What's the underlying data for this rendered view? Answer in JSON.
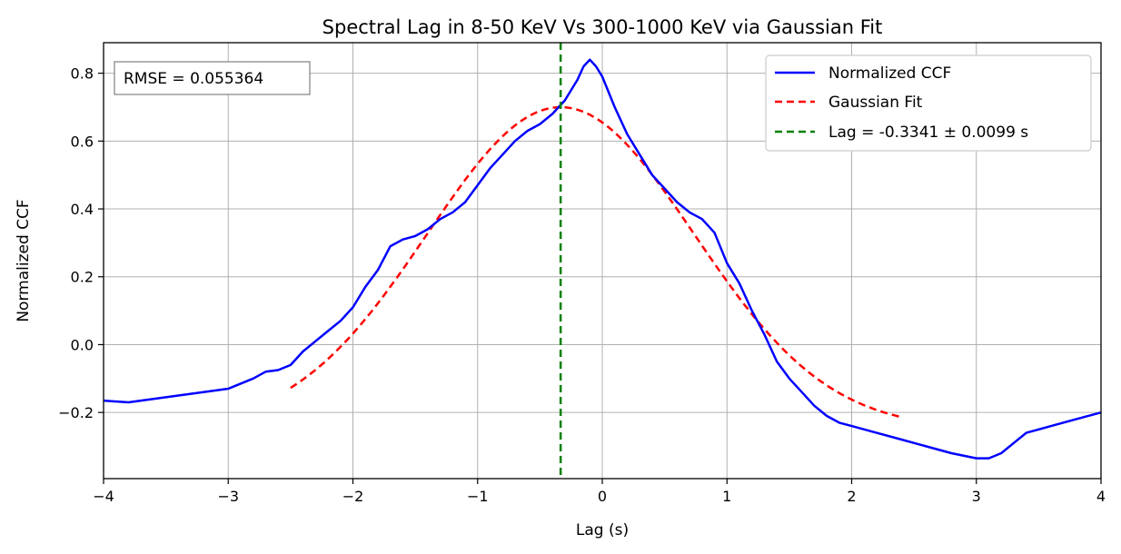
{
  "chart_data": {
    "type": "line",
    "title": "Spectral Lag in 8-50 KeV Vs 300-1000 KeV via Gaussian Fit",
    "xlabel": "Lag (s)",
    "ylabel": "Normalized CCF",
    "xlim": [
      -4,
      4
    ],
    "ylim": [
      -0.395,
      0.89
    ],
    "xticks": [
      -4,
      -3,
      -2,
      -1,
      0,
      1,
      2,
      3,
      4
    ],
    "xtick_labels": [
      "−4",
      "−3",
      "−2",
      "−1",
      "0",
      "1",
      "2",
      "3",
      "4"
    ],
    "yticks": [
      -0.2,
      0.0,
      0.2,
      0.4,
      0.6,
      0.8
    ],
    "ytick_labels": [
      "−0.2",
      "0.0",
      "0.2",
      "0.4",
      "0.6",
      "0.8"
    ],
    "grid": true,
    "legend_position": "top-right",
    "annotation": "RMSE = 0.055364",
    "series": [
      {
        "name": "Normalized CCF",
        "color": "#0000ff",
        "style": "solid",
        "x": [
          -4.0,
          -3.8,
          -3.6,
          -3.4,
          -3.2,
          -3.0,
          -2.8,
          -2.7,
          -2.6,
          -2.5,
          -2.4,
          -2.3,
          -2.2,
          -2.1,
          -2.0,
          -1.9,
          -1.8,
          -1.7,
          -1.6,
          -1.5,
          -1.4,
          -1.3,
          -1.2,
          -1.1,
          -1.0,
          -0.9,
          -0.8,
          -0.7,
          -0.6,
          -0.5,
          -0.4,
          -0.3,
          -0.2,
          -0.15,
          -0.1,
          -0.05,
          0.0,
          0.1,
          0.2,
          0.3,
          0.4,
          0.5,
          0.6,
          0.7,
          0.8,
          0.9,
          1.0,
          1.1,
          1.2,
          1.3,
          1.4,
          1.5,
          1.6,
          1.7,
          1.8,
          1.9,
          2.0,
          2.2,
          2.4,
          2.6,
          2.8,
          3.0,
          3.1,
          3.2,
          3.3,
          3.4,
          3.6,
          3.8,
          4.0
        ],
        "y": [
          -0.165,
          -0.17,
          -0.16,
          -0.15,
          -0.14,
          -0.13,
          -0.1,
          -0.08,
          -0.075,
          -0.06,
          -0.02,
          0.01,
          0.04,
          0.07,
          0.11,
          0.17,
          0.22,
          0.29,
          0.31,
          0.32,
          0.34,
          0.37,
          0.39,
          0.42,
          0.47,
          0.52,
          0.56,
          0.6,
          0.63,
          0.65,
          0.68,
          0.72,
          0.78,
          0.82,
          0.84,
          0.82,
          0.79,
          0.7,
          0.62,
          0.56,
          0.5,
          0.46,
          0.42,
          0.39,
          0.37,
          0.33,
          0.24,
          0.18,
          0.1,
          0.03,
          -0.05,
          -0.1,
          -0.14,
          -0.18,
          -0.21,
          -0.23,
          -0.24,
          -0.26,
          -0.28,
          -0.3,
          -0.32,
          -0.335,
          -0.335,
          -0.32,
          -0.29,
          -0.26,
          -0.24,
          -0.22,
          -0.2
        ]
      },
      {
        "name": "Gaussian Fit",
        "color": "#ff0000",
        "style": "dashed",
        "gaussian": {
          "amplitude": 0.95,
          "mean": -0.3341,
          "sigma": 1.07,
          "offset": -0.25
        },
        "x_range": [
          -2.5,
          2.4
        ]
      },
      {
        "name": "Lag = -0.3341 ± 0.0099 s",
        "color": "#008000",
        "style": "dashed",
        "vline_x": -0.3341
      }
    ]
  }
}
